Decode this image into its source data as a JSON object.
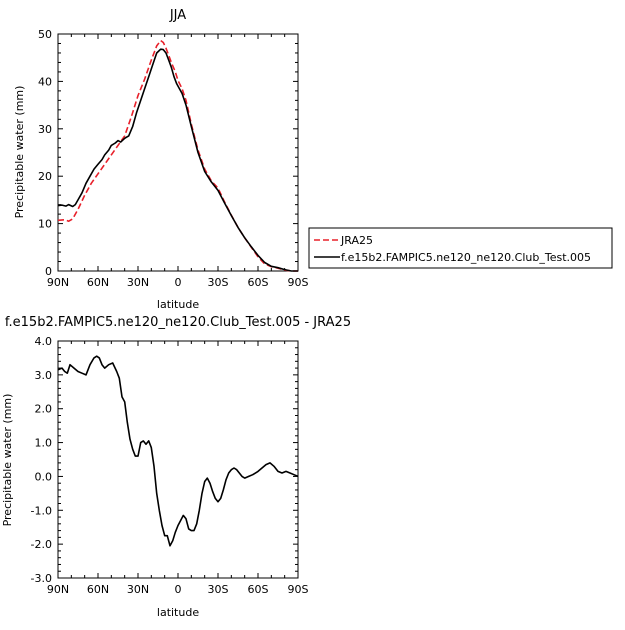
{
  "chart_data": [
    {
      "type": "line",
      "title": "JJA",
      "xlabel": "latitude",
      "ylabel": "Precipitable  water  (mm)",
      "xlim": [
        90,
        -90
      ],
      "ylim": [
        0,
        50
      ],
      "xticks": [
        90,
        60,
        30,
        0,
        -30,
        -60,
        -90
      ],
      "xtick_labels": [
        "90N",
        "60N",
        "30N",
        "0",
        "30S",
        "60S",
        "90S"
      ],
      "yticks": [
        0,
        10,
        20,
        30,
        40,
        50
      ],
      "ytick_labels": [
        "0",
        "10",
        "20",
        "30",
        "40",
        "50"
      ],
      "legend_position": "right",
      "series": [
        {
          "name": "JRA25",
          "color": "#e8202a",
          "dash": "dashed",
          "x": [
            90,
            85,
            82,
            79,
            75,
            70,
            65,
            60,
            55,
            50,
            45,
            40,
            35,
            30,
            25,
            20,
            16,
            13,
            11,
            9,
            7,
            5,
            2,
            0,
            -3,
            -6,
            -10,
            -15,
            -20,
            -25,
            -30,
            -35,
            -40,
            -45,
            -50,
            -55,
            -60,
            -65,
            -70,
            -75,
            -80,
            -85,
            -90
          ],
          "y": [
            10.7,
            10.8,
            10.5,
            11.0,
            13.0,
            16.0,
            18.5,
            20.5,
            22.5,
            24.5,
            26.5,
            28.5,
            32.5,
            37.0,
            40.5,
            44.5,
            47.5,
            48.6,
            48.2,
            47.0,
            45.5,
            44.0,
            42.0,
            40.2,
            38.5,
            36.0,
            31.0,
            25.5,
            21.5,
            19.0,
            17.5,
            14.5,
            11.8,
            9.2,
            7.0,
            5.0,
            3.0,
            1.5,
            0.9,
            0.6,
            0.2,
            0.0,
            0.0
          ]
        },
        {
          "name": "f.e15b2.FAMPIC5.ne120_ne120.Club_Test.005",
          "color": "#000000",
          "dash": "solid",
          "x": [
            90,
            87,
            84,
            82,
            79,
            77,
            75,
            72,
            69,
            66,
            63,
            60,
            57,
            55,
            52,
            50,
            47,
            45,
            43,
            40,
            37,
            34,
            31,
            28,
            25,
            22,
            19,
            16,
            13,
            11,
            9,
            7,
            5,
            3,
            1,
            -1,
            -3,
            -6,
            -10,
            -15,
            -20,
            -25,
            -30,
            -35,
            -40,
            -45,
            -50,
            -55,
            -60,
            -65,
            -70,
            -75,
            -80,
            -85,
            -90
          ],
          "y": [
            13.8,
            13.9,
            13.7,
            14.0,
            13.6,
            14.0,
            15.0,
            16.5,
            18.5,
            20.0,
            21.5,
            22.5,
            23.5,
            24.5,
            25.5,
            26.5,
            27.0,
            27.5,
            27.2,
            28.0,
            28.5,
            30.5,
            33.5,
            36.0,
            38.5,
            41.0,
            43.5,
            46.0,
            46.8,
            46.7,
            46.0,
            44.5,
            43.0,
            41.0,
            39.5,
            38.5,
            37.5,
            35.0,
            30.5,
            25.0,
            21.0,
            18.8,
            17.0,
            14.3,
            11.7,
            9.2,
            7.0,
            5.1,
            3.3,
            1.8,
            1.0,
            0.7,
            0.3,
            0.0,
            0.0
          ]
        }
      ]
    },
    {
      "type": "line",
      "title": "f.e15b2.FAMPIC5.ne120_ne120.Club_Test.005  -  JRA25",
      "xlabel": "latitude",
      "ylabel": "Precipitable  water  (mm)",
      "xlim": [
        90,
        -90
      ],
      "ylim": [
        -3.0,
        4.0
      ],
      "xticks": [
        90,
        60,
        30,
        0,
        -30,
        -60,
        -90
      ],
      "xtick_labels": [
        "90N",
        "60N",
        "30N",
        "0",
        "30S",
        "60S",
        "90S"
      ],
      "yticks": [
        -3,
        -2,
        -1,
        0,
        1,
        2,
        3,
        4
      ],
      "ytick_labels": [
        "-3.0",
        "-2.0",
        "-1.0",
        "0.0",
        "1.0",
        "2.0",
        "3.0",
        "4.0"
      ],
      "series": [
        {
          "color": "#000000",
          "dash": "solid",
          "x": [
            90,
            87,
            85,
            83,
            81,
            78,
            75,
            72,
            69,
            66,
            63,
            61,
            59,
            57,
            55,
            52,
            49,
            46,
            44,
            42,
            40,
            38,
            36,
            34,
            32,
            30,
            28,
            26,
            24,
            22,
            20,
            18,
            16,
            14,
            12,
            10,
            8,
            6,
            4,
            2,
            0,
            -2,
            -4,
            -6,
            -8,
            -10,
            -12,
            -14,
            -16,
            -18,
            -20,
            -22,
            -24,
            -26,
            -28,
            -30,
            -32,
            -34,
            -36,
            -38,
            -40,
            -42,
            -44,
            -46,
            -48,
            -50,
            -53,
            -56,
            -60,
            -63,
            -66,
            -69,
            -72,
            -75,
            -78,
            -81,
            -84,
            -87,
            -90
          ],
          "y": [
            3.15,
            3.2,
            3.1,
            3.05,
            3.3,
            3.2,
            3.1,
            3.05,
            3.0,
            3.3,
            3.5,
            3.55,
            3.5,
            3.3,
            3.2,
            3.3,
            3.35,
            3.1,
            2.9,
            2.35,
            2.2,
            1.6,
            1.1,
            0.8,
            0.6,
            0.6,
            1.0,
            1.05,
            0.95,
            1.05,
            0.85,
            0.3,
            -0.5,
            -1.0,
            -1.45,
            -1.75,
            -1.75,
            -2.05,
            -1.9,
            -1.65,
            -1.45,
            -1.3,
            -1.15,
            -1.25,
            -1.55,
            -1.6,
            -1.6,
            -1.4,
            -1.0,
            -0.5,
            -0.15,
            -0.05,
            -0.2,
            -0.45,
            -0.65,
            -0.75,
            -0.65,
            -0.4,
            -0.1,
            0.1,
            0.2,
            0.25,
            0.2,
            0.1,
            0.0,
            -0.05,
            0.0,
            0.05,
            0.15,
            0.25,
            0.35,
            0.4,
            0.3,
            0.15,
            0.1,
            0.15,
            0.1,
            0.05,
            0.0
          ]
        }
      ]
    }
  ]
}
